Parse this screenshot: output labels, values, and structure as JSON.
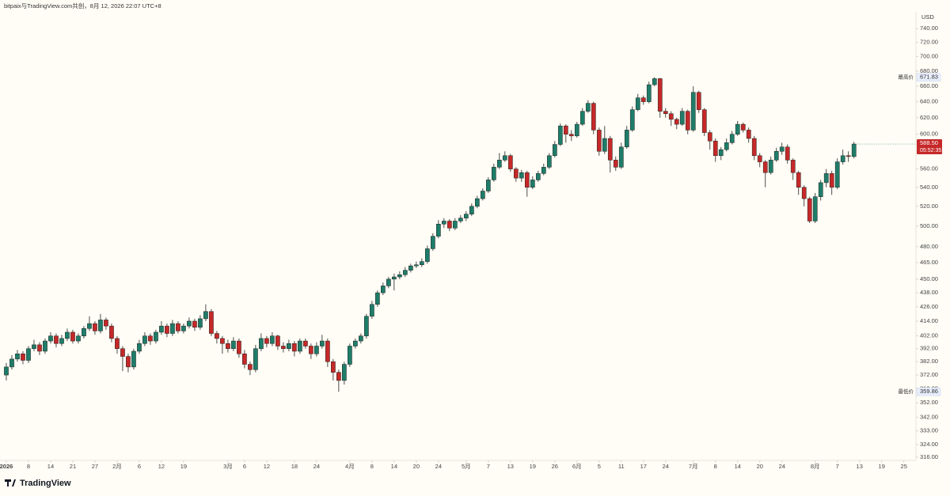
{
  "header": {
    "text": "bitpaix与TradingView.com共创，8月 12, 2026 22:07 UTC+8",
    "currency": "USD",
    "logo": "TradingView"
  },
  "chart_data": {
    "type": "candlestick",
    "log_scale": true,
    "up_color": "#1e7d69",
    "down_color": "#c62828",
    "open": [
      372,
      378,
      384,
      388,
      383,
      392,
      395,
      390,
      398,
      402,
      396,
      400,
      405,
      398,
      402,
      408,
      412,
      406,
      415,
      410,
      400,
      392,
      386,
      378,
      390,
      396,
      402,
      398,
      405,
      410,
      404,
      412,
      406,
      410,
      414,
      409,
      416,
      422,
      404,
      400,
      396,
      392,
      398,
      388,
      380,
      376,
      392,
      400,
      396,
      402,
      394,
      392,
      396,
      390,
      398,
      394,
      388,
      394,
      398,
      382,
      374,
      368,
      380,
      394,
      398,
      402,
      418,
      428,
      438,
      444,
      450,
      452,
      454,
      458,
      462,
      463,
      466,
      478,
      490,
      502,
      505,
      498,
      505,
      508,
      512,
      520,
      528,
      536,
      548,
      562,
      570,
      575,
      560,
      550,
      556,
      540,
      548,
      555,
      562,
      575,
      588,
      610,
      600,
      598,
      612,
      628,
      638,
      605,
      580,
      595,
      570,
      562,
      585,
      605,
      630,
      645,
      640,
      662,
      670,
      628,
      625,
      618,
      612,
      628,
      605,
      652,
      630,
      602,
      592,
      575,
      582,
      590,
      600,
      612,
      605,
      595,
      575,
      568,
      556,
      570,
      580,
      585,
      570,
      556,
      540,
      528,
      505,
      530,
      545,
      555,
      540,
      568,
      575,
      574
    ],
    "high": [
      381,
      387,
      391,
      390,
      394,
      399,
      397,
      400,
      405,
      404,
      403,
      408,
      407,
      404,
      410,
      418,
      414,
      420,
      417,
      412,
      402,
      394,
      388,
      392,
      399,
      405,
      404,
      407,
      414,
      412,
      415,
      414,
      412,
      417,
      416,
      419,
      428,
      424,
      406,
      402,
      399,
      401,
      400,
      391,
      382,
      395,
      404,
      402,
      405,
      403,
      397,
      399,
      398,
      400,
      400,
      396,
      397,
      403,
      400,
      384,
      376,
      382,
      396,
      400,
      404,
      420,
      431,
      440,
      447,
      452,
      455,
      457,
      461,
      464,
      466,
      469,
      481,
      493,
      506,
      508,
      507,
      508,
      511,
      515,
      523,
      531,
      539,
      551,
      566,
      578,
      580,
      577,
      562,
      559,
      558,
      552,
      558,
      566,
      578,
      592,
      613,
      612,
      605,
      615,
      632,
      642,
      640,
      608,
      610,
      598,
      574,
      590,
      610,
      634,
      650,
      648,
      666,
      671.83,
      671,
      632,
      628,
      620,
      632,
      630,
      660,
      654,
      632,
      605,
      595,
      585,
      595,
      604,
      616,
      614,
      608,
      598,
      578,
      570,
      574,
      584,
      590,
      588,
      572,
      558,
      542,
      530,
      534,
      548,
      560,
      558,
      572,
      582,
      580,
      591
    ],
    "low": [
      368,
      376,
      382,
      380,
      381,
      390,
      387,
      388,
      396,
      393,
      394,
      398,
      396,
      396,
      400,
      406,
      403,
      404,
      407,
      397,
      388,
      375,
      374,
      376,
      388,
      394,
      395,
      396,
      403,
      401,
      402,
      404,
      404,
      408,
      406,
      407,
      414,
      402,
      396,
      388,
      389,
      390,
      385,
      377,
      372,
      374,
      390,
      393,
      394,
      391,
      389,
      390,
      386,
      388,
      392,
      384,
      386,
      392,
      378,
      368,
      359.86,
      365,
      378,
      392,
      396,
      400,
      416,
      426,
      436,
      442,
      440,
      450,
      452,
      456,
      460,
      461,
      464,
      476,
      488,
      498,
      495,
      496,
      503,
      505,
      510,
      518,
      526,
      534,
      546,
      560,
      568,
      557,
      546,
      546,
      530,
      538,
      546,
      553,
      560,
      573,
      586,
      590,
      592,
      596,
      610,
      626,
      600,
      575,
      577,
      556,
      558,
      560,
      583,
      603,
      628,
      636,
      638,
      660,
      620,
      620,
      610,
      606,
      610,
      600,
      603,
      626,
      598,
      582,
      568,
      570,
      580,
      588,
      598,
      602,
      590,
      570,
      562,
      540,
      554,
      568,
      576,
      566,
      548,
      532,
      520,
      503,
      503,
      526,
      540,
      532,
      538,
      565,
      568,
      572
    ],
    "close": [
      378,
      384,
      388,
      383,
      392,
      395,
      390,
      398,
      402,
      396,
      400,
      405,
      398,
      402,
      408,
      412,
      406,
      415,
      410,
      400,
      392,
      386,
      378,
      390,
      396,
      402,
      398,
      405,
      410,
      404,
      412,
      406,
      410,
      414,
      409,
      416,
      422,
      404,
      400,
      396,
      392,
      398,
      388,
      380,
      376,
      392,
      400,
      396,
      402,
      394,
      392,
      396,
      390,
      398,
      394,
      388,
      394,
      398,
      382,
      374,
      368,
      380,
      394,
      398,
      402,
      418,
      428,
      438,
      444,
      450,
      452,
      454,
      458,
      462,
      463,
      466,
      478,
      490,
      502,
      505,
      498,
      505,
      508,
      512,
      520,
      528,
      536,
      548,
      562,
      570,
      575,
      560,
      550,
      556,
      540,
      548,
      555,
      562,
      575,
      588,
      610,
      600,
      598,
      612,
      628,
      638,
      605,
      580,
      595,
      570,
      562,
      585,
      605,
      630,
      645,
      640,
      662,
      670,
      628,
      625,
      618,
      612,
      628,
      605,
      652,
      630,
      602,
      592,
      575,
      582,
      590,
      600,
      612,
      605,
      595,
      575,
      568,
      556,
      570,
      580,
      585,
      570,
      556,
      540,
      528,
      505,
      530,
      545,
      555,
      540,
      568,
      575,
      574,
      588.5
    ],
    "xlim": [
      -1.14,
      163.9
    ],
    "ylim": [
      314,
      765
    ],
    "xticks": [
      {
        "value": 0,
        "label": "2026"
      },
      {
        "value": 4,
        "label": "8"
      },
      {
        "value": 8,
        "label": "14"
      },
      {
        "value": 12,
        "label": "21"
      },
      {
        "value": 16,
        "label": "27"
      },
      {
        "value": 20,
        "label": "2月"
      },
      {
        "value": 24,
        "label": "6"
      },
      {
        "value": 28,
        "label": "12"
      },
      {
        "value": 32,
        "label": "19"
      },
      {
        "value": 40,
        "label": "3月"
      },
      {
        "value": 43,
        "label": "6"
      },
      {
        "value": 47,
        "label": "12"
      },
      {
        "value": 52,
        "label": "18"
      },
      {
        "value": 56,
        "label": "24"
      },
      {
        "value": 62,
        "label": "4月"
      },
      {
        "value": 66,
        "label": "8"
      },
      {
        "value": 70,
        "label": "14"
      },
      {
        "value": 74,
        "label": "20"
      },
      {
        "value": 78,
        "label": "24"
      },
      {
        "value": 83,
        "label": "5月"
      },
      {
        "value": 87,
        "label": "7"
      },
      {
        "value": 91,
        "label": "13"
      },
      {
        "value": 95,
        "label": "19"
      },
      {
        "value": 99,
        "label": "26"
      },
      {
        "value": 103,
        "label": "6月"
      },
      {
        "value": 107,
        "label": "5"
      },
      {
        "value": 111,
        "label": "11"
      },
      {
        "value": 115,
        "label": "17"
      },
      {
        "value": 119,
        "label": "24"
      },
      {
        "value": 124,
        "label": "7月"
      },
      {
        "value": 128,
        "label": "8"
      },
      {
        "value": 132,
        "label": "14"
      },
      {
        "value": 136,
        "label": "20"
      },
      {
        "value": 140,
        "label": "24"
      },
      {
        "value": 146,
        "label": "8月"
      },
      {
        "value": 150,
        "label": "7"
      },
      {
        "value": 154,
        "label": "13"
      },
      {
        "value": 158,
        "label": "19"
      },
      {
        "value": 162,
        "label": "25"
      }
    ],
    "yticks": [
      {
        "value": 316,
        "label": "316.00"
      },
      {
        "value": 324,
        "label": "324.00"
      },
      {
        "value": 333,
        "label": "333.00"
      },
      {
        "value": 342,
        "label": "342.00"
      },
      {
        "value": 352,
        "label": "352.00"
      },
      {
        "value": 362,
        "label": "362.00"
      },
      {
        "value": 372,
        "label": "372.00"
      },
      {
        "value": 382,
        "label": "382.00"
      },
      {
        "value": 392,
        "label": "392.00"
      },
      {
        "value": 402,
        "label": "402.00"
      },
      {
        "value": 414,
        "label": "414.00"
      },
      {
        "value": 426,
        "label": "426.00"
      },
      {
        "value": 438,
        "label": "438.00"
      },
      {
        "value": 450,
        "label": "450.00"
      },
      {
        "value": 465,
        "label": "465.00"
      },
      {
        "value": 480,
        "label": "480.00"
      },
      {
        "value": 500,
        "label": "500.00"
      },
      {
        "value": 520,
        "label": "520.00"
      },
      {
        "value": 540,
        "label": "540.00"
      },
      {
        "value": 560,
        "label": "560.00"
      },
      {
        "value": 600,
        "label": "600.00"
      },
      {
        "value": 620,
        "label": "620.00"
      },
      {
        "value": 640,
        "label": "640.00"
      },
      {
        "value": 660,
        "label": "660.00"
      },
      {
        "value": 680,
        "label": "680.00"
      },
      {
        "value": 700,
        "label": "700.00"
      },
      {
        "value": 720,
        "label": "720.00"
      },
      {
        "value": 740,
        "label": "740.00"
      }
    ],
    "high_marker": {
      "label": "最高价",
      "value": 671.83,
      "value_label": "671.83"
    },
    "low_marker": {
      "label": "最低价",
      "value": 359.86,
      "value_label": "359.86"
    },
    "last_price": {
      "value": 588.5,
      "label": "588.50",
      "countdown": "05:52:35"
    }
  }
}
